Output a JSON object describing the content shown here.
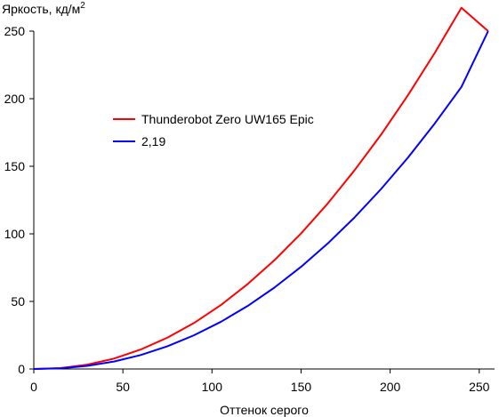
{
  "chart_data": {
    "type": "line",
    "ylabel_main": "Яркость, кд/м",
    "ylabel_sup": "2",
    "xlabel": "Оттенок серого",
    "xlim": [
      0,
      255
    ],
    "ylim": [
      0,
      250
    ],
    "x_ticks": [
      0,
      50,
      100,
      150,
      200,
      250
    ],
    "y_ticks": [
      0,
      50,
      100,
      150,
      200,
      250
    ],
    "grid": false,
    "legend_position": "upper-left",
    "series": [
      {
        "name": "Thunderobot Zero UW165 Epic",
        "color": "#ff0000",
        "x": [
          0,
          15,
          30,
          45,
          60,
          75,
          90,
          105,
          120,
          135,
          150,
          165,
          180,
          195,
          210,
          225,
          240,
          255
        ],
        "y": [
          0,
          0.7,
          3.2,
          7.7,
          14.4,
          23.2,
          34.1,
          47.3,
          62.8,
          80.4,
          100.3,
          122.5,
          147.0,
          173.6,
          202.6,
          233.8,
          267.3,
          250
        ]
      },
      {
        "name": "2,19",
        "color": "#0000ff",
        "x": [
          0,
          15,
          30,
          45,
          60,
          75,
          90,
          105,
          120,
          135,
          150,
          165,
          180,
          195,
          210,
          225,
          240,
          255
        ],
        "y": [
          0,
          0.5,
          2.3,
          5.5,
          10.3,
          16.8,
          25.0,
          34.9,
          46.6,
          60.2,
          75.6,
          92.9,
          112.1,
          133.3,
          156.4,
          181.6,
          208.7,
          250
        ]
      }
    ]
  }
}
